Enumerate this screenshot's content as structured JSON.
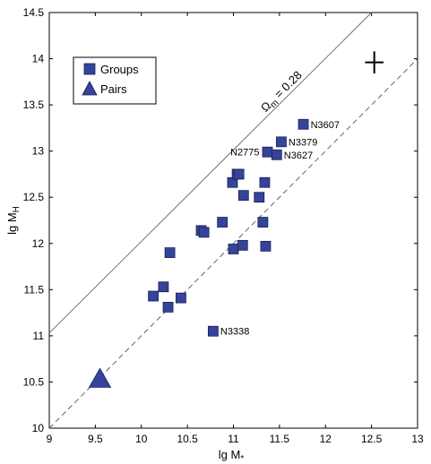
{
  "chart_data": {
    "type": "scatter",
    "title": "",
    "xlabel": "lg M",
    "xlabel_sub": "*",
    "ylabel": "lg M",
    "ylabel_sub": "H",
    "xlim": [
      9,
      13
    ],
    "ylim": [
      10,
      14.5
    ],
    "xticks": [
      "9",
      "9.5",
      "10",
      "10.5",
      "11",
      "11.5",
      "12",
      "12.5",
      "13"
    ],
    "yticks": [
      "10",
      "10.5",
      "11",
      "11.5",
      "12",
      "12.5",
      "13",
      "13.5",
      "14",
      "14.5"
    ],
    "legend": {
      "position": "top-left",
      "entries": [
        {
          "label": "Groups",
          "marker": "square"
        },
        {
          "label": "Pairs",
          "marker": "triangle"
        }
      ]
    },
    "marker_color": "#35449a",
    "series": [
      {
        "name": "Groups",
        "marker": "square",
        "points": [
          {
            "x": 10.13,
            "y": 11.43
          },
          {
            "x": 10.24,
            "y": 11.53
          },
          {
            "x": 10.29,
            "y": 11.31
          },
          {
            "x": 10.43,
            "y": 11.41
          },
          {
            "x": 10.31,
            "y": 11.9
          },
          {
            "x": 10.65,
            "y": 12.14
          },
          {
            "x": 10.68,
            "y": 12.12
          },
          {
            "x": 10.88,
            "y": 12.23
          },
          {
            "x": 11.0,
            "y": 11.94
          },
          {
            "x": 11.1,
            "y": 11.98
          },
          {
            "x": 10.99,
            "y": 12.66
          },
          {
            "x": 11.04,
            "y": 12.75
          },
          {
            "x": 11.06,
            "y": 12.75
          },
          {
            "x": 11.11,
            "y": 12.52
          },
          {
            "x": 11.28,
            "y": 12.5
          },
          {
            "x": 11.32,
            "y": 12.23
          },
          {
            "x": 11.34,
            "y": 12.66
          },
          {
            "x": 11.35,
            "y": 11.97
          },
          {
            "x": 11.37,
            "y": 12.99,
            "label": "N2775"
          },
          {
            "x": 11.47,
            "y": 12.96,
            "label": "N3627"
          },
          {
            "x": 11.52,
            "y": 13.1,
            "label": "N3379"
          },
          {
            "x": 11.76,
            "y": 13.29,
            "label": "N3607"
          },
          {
            "x": 10.78,
            "y": 11.05,
            "label": "N3338"
          }
        ]
      },
      {
        "name": "Pairs",
        "marker": "triangle",
        "points": [
          {
            "x": 9.55,
            "y": 10.53
          }
        ]
      }
    ],
    "error_cross": {
      "x": 12.53,
      "y": 13.96,
      "x_half": 0.1,
      "y_half": 0.12
    },
    "lines": [
      {
        "style": "solid",
        "x0": 9.0,
        "y0": 11.03,
        "x1": 12.5,
        "y1": 14.5,
        "label": "Ω",
        "label_sub": "m",
        "label_rest": " = 0.28"
      },
      {
        "style": "dashed",
        "x0": 9.0,
        "y0": 10.0,
        "x1": 13.0,
        "y1": 14.0
      }
    ]
  }
}
